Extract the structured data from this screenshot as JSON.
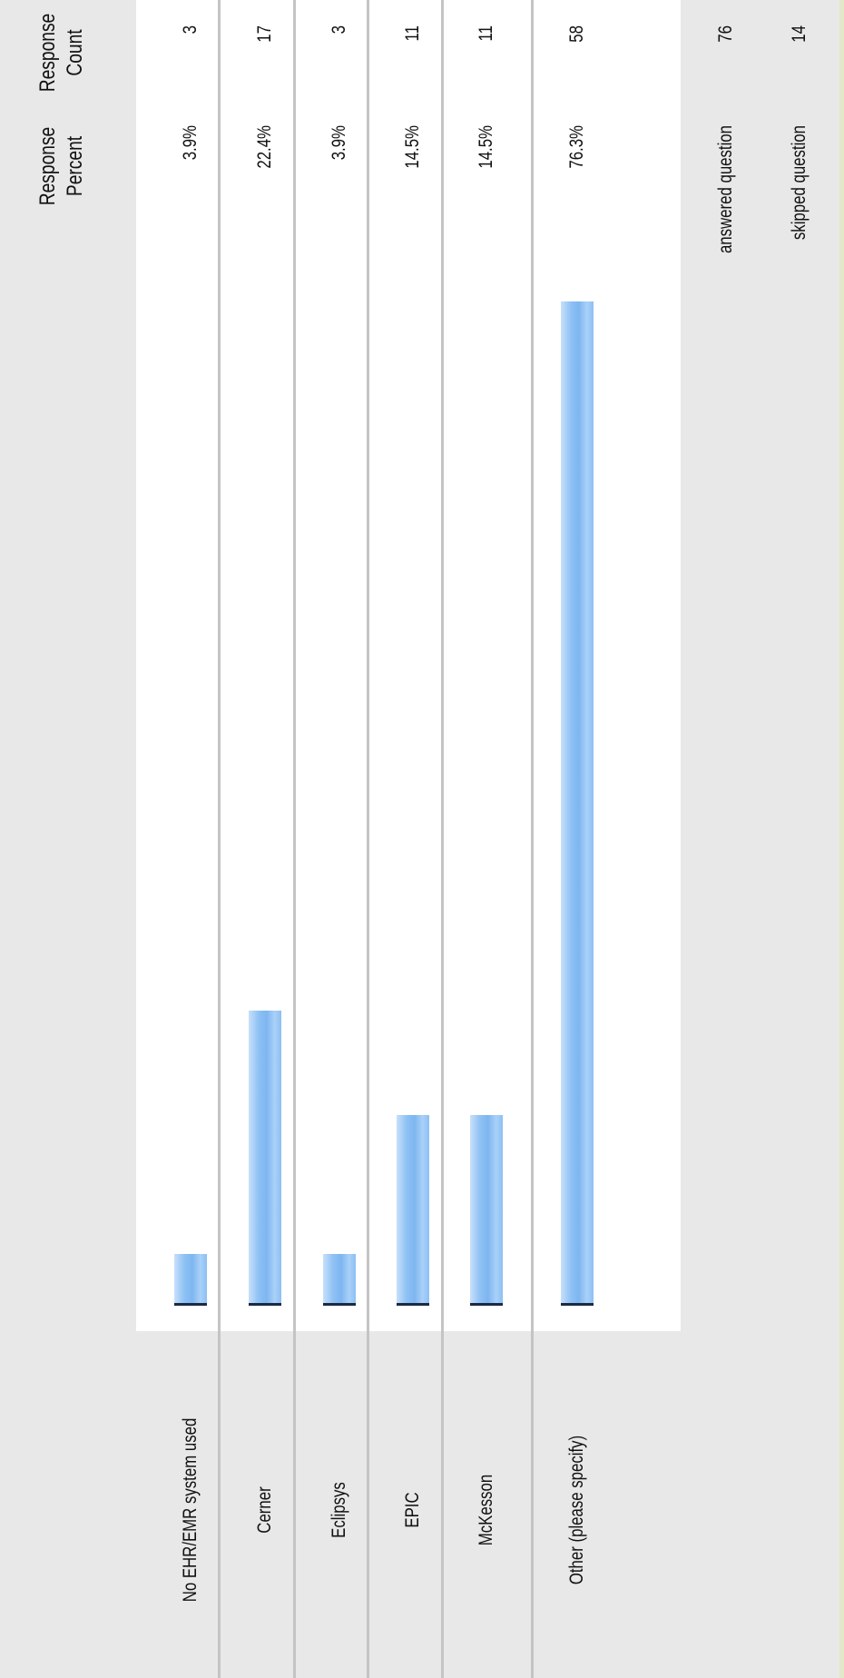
{
  "chart_data": {
    "type": "bar",
    "orientation": "horizontal",
    "title": "",
    "xlabel": "",
    "ylabel": "",
    "headers": {
      "percent": "Response Percent",
      "count": "Response Count"
    },
    "categories": [
      "No EHR/EMR system used",
      "Cerner",
      "Eclipsys",
      "EPIC",
      "McKesson",
      "Other (please specify)"
    ],
    "values": [
      3.9,
      22.4,
      3.9,
      14.5,
      14.5,
      76.3
    ],
    "percent_labels": [
      "3.9%",
      "22.4%",
      "3.9%",
      "14.5%",
      "14.5%",
      "76.3%"
    ],
    "counts": [
      "3",
      "17",
      "3",
      "11",
      "11",
      "58"
    ],
    "xlim": [
      0,
      100
    ],
    "grid": false,
    "legend": "none"
  },
  "summary": {
    "answered_label": "answered question",
    "answered_value": "76",
    "skipped_label": "skipped question",
    "skipped_value": "14"
  },
  "colors": {
    "bar_fill": "#8fc2f4",
    "bar_edge": "#1b2a44",
    "panel_background": "#e8e8e8",
    "divider": "#c4c4c4",
    "accent_stripe": "#e3e8c8"
  }
}
